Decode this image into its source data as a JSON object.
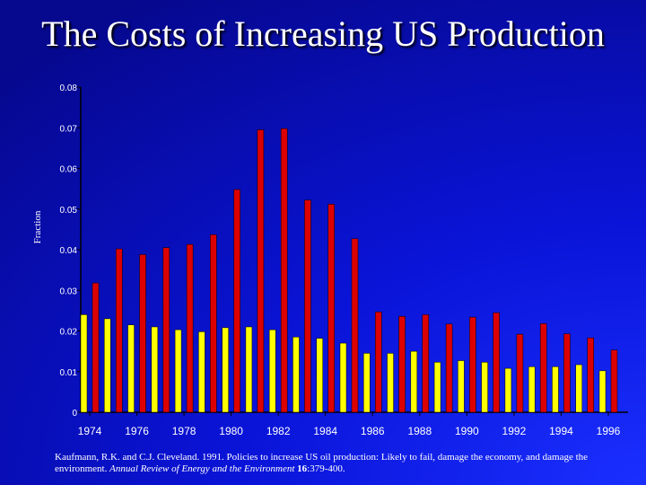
{
  "slide": {
    "title": "The Costs of Increasing US Production"
  },
  "chart_data": {
    "type": "bar",
    "title": "The Costs of Increasing US Production",
    "xlabel": "",
    "ylabel": "Fraction",
    "ylim": [
      0,
      0.08
    ],
    "yticks": [
      "0",
      "0.01",
      "0.02",
      "0.03",
      "0.04",
      "0.05",
      "0.06",
      "0.07",
      "0.08"
    ],
    "xticks": [
      "1974",
      "1976",
      "1978",
      "1980",
      "1982",
      "1984",
      "1986",
      "1988",
      "1990",
      "1992",
      "1994",
      "1996"
    ],
    "categories": [
      1974,
      1975,
      1976,
      1977,
      1978,
      1979,
      1980,
      1981,
      1982,
      1983,
      1984,
      1985,
      1986,
      1987,
      1988,
      1989,
      1990,
      1991,
      1992,
      1993,
      1994,
      1995,
      1996
    ],
    "series": [
      {
        "name": "yellow",
        "color": "#ffff00",
        "values": [
          0.024,
          0.023,
          0.0215,
          0.021,
          0.0203,
          0.0198,
          0.0208,
          0.021,
          0.0203,
          0.0185,
          0.0182,
          0.017,
          0.0145,
          0.0145,
          0.015,
          0.0123,
          0.0127,
          0.0123,
          0.0108,
          0.0112,
          0.0112,
          0.0117,
          0.0102
        ]
      },
      {
        "name": "red",
        "color": "#dd0000",
        "values": [
          0.0318,
          0.0402,
          0.0388,
          0.0405,
          0.0413,
          0.0437,
          0.0548,
          0.0695,
          0.0698,
          0.0522,
          0.0512,
          0.0427,
          0.0247,
          0.0236,
          0.024,
          0.0217,
          0.0234,
          0.0245,
          0.0192,
          0.0218,
          0.0193,
          0.0183,
          0.0153
        ]
      }
    ]
  },
  "citation": {
    "authors": "Kaufmann, R.K.  and C.J. Cleveland.  1991.  Policies to increase US oil production: Likely to fail, damage the economy, and damage the environment.",
    "journal": "Annual Review of Energy and the Environment",
    "volume": "16",
    "pages": ":379-400."
  }
}
